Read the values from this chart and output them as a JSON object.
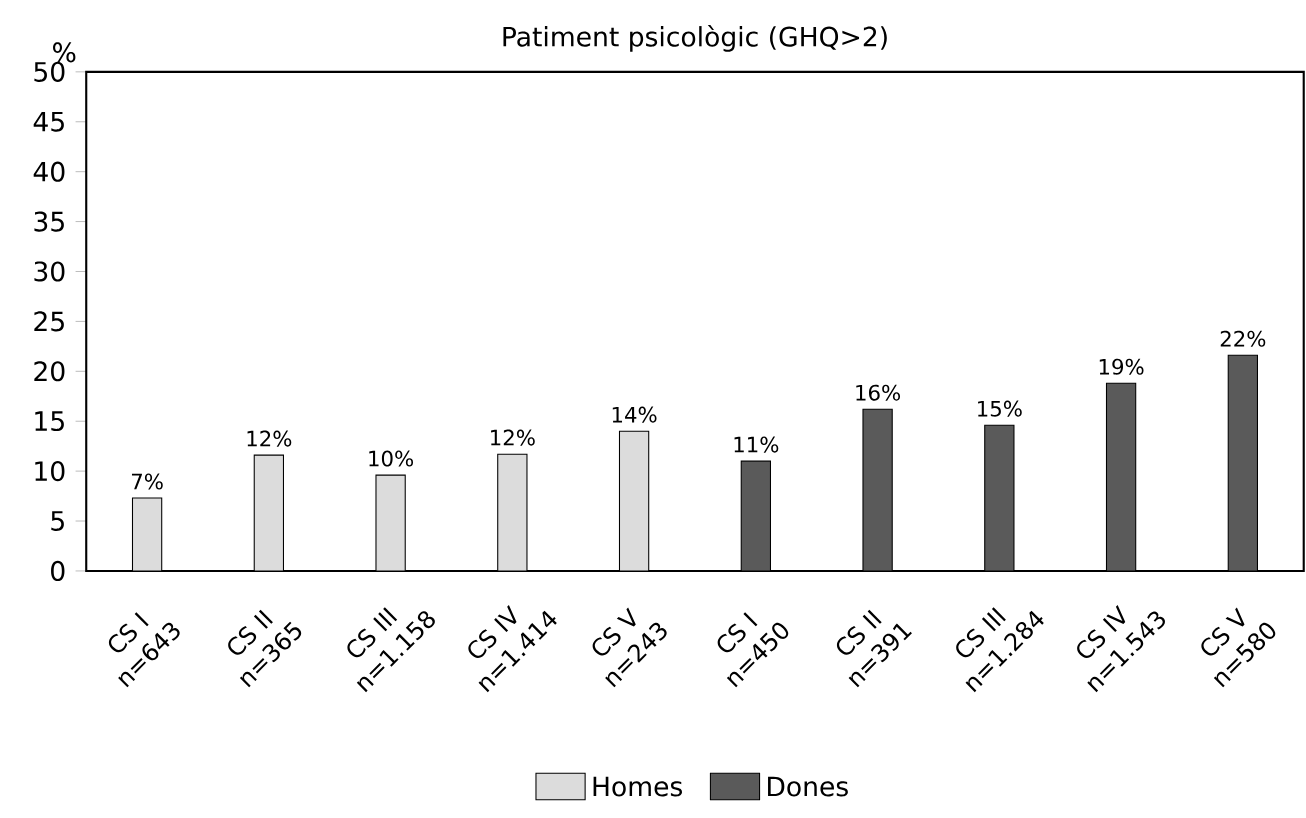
{
  "chart_data": {
    "type": "bar",
    "title": "Patiment psicològic (GHQ>2)",
    "ylabel": "%",
    "categories": [
      "CS I n=643",
      "CS II n=365",
      "CS III n=1.158",
      "CS IV n=1.414",
      "CS V n=243",
      "CS I n=450",
      "CS II n=391",
      "CS III n=1.284",
      "CS IV n=1.543",
      "CS V n=580"
    ],
    "series": [
      {
        "name": "Homes",
        "color": "#dcdcdc",
        "values": [
          7.3,
          11.6,
          9.6,
          11.7,
          14.0,
          null,
          null,
          null,
          null,
          null
        ],
        "value_labels": [
          "7%",
          "12%",
          "10%",
          "12%",
          "14%",
          null,
          null,
          null,
          null,
          null
        ]
      },
      {
        "name": "Dones",
        "color": "#5a5a5a",
        "values": [
          null,
          null,
          null,
          null,
          null,
          11.0,
          16.2,
          14.6,
          18.8,
          21.6
        ],
        "value_labels": [
          null,
          null,
          null,
          null,
          null,
          "11%",
          "16%",
          "15%",
          "19%",
          "22%"
        ]
      }
    ],
    "ylim": [
      0,
      50
    ],
    "yticks": [
      0,
      5,
      10,
      15,
      20,
      25,
      30,
      35,
      40,
      45,
      50
    ],
    "grid": false,
    "legend": "bottom"
  }
}
